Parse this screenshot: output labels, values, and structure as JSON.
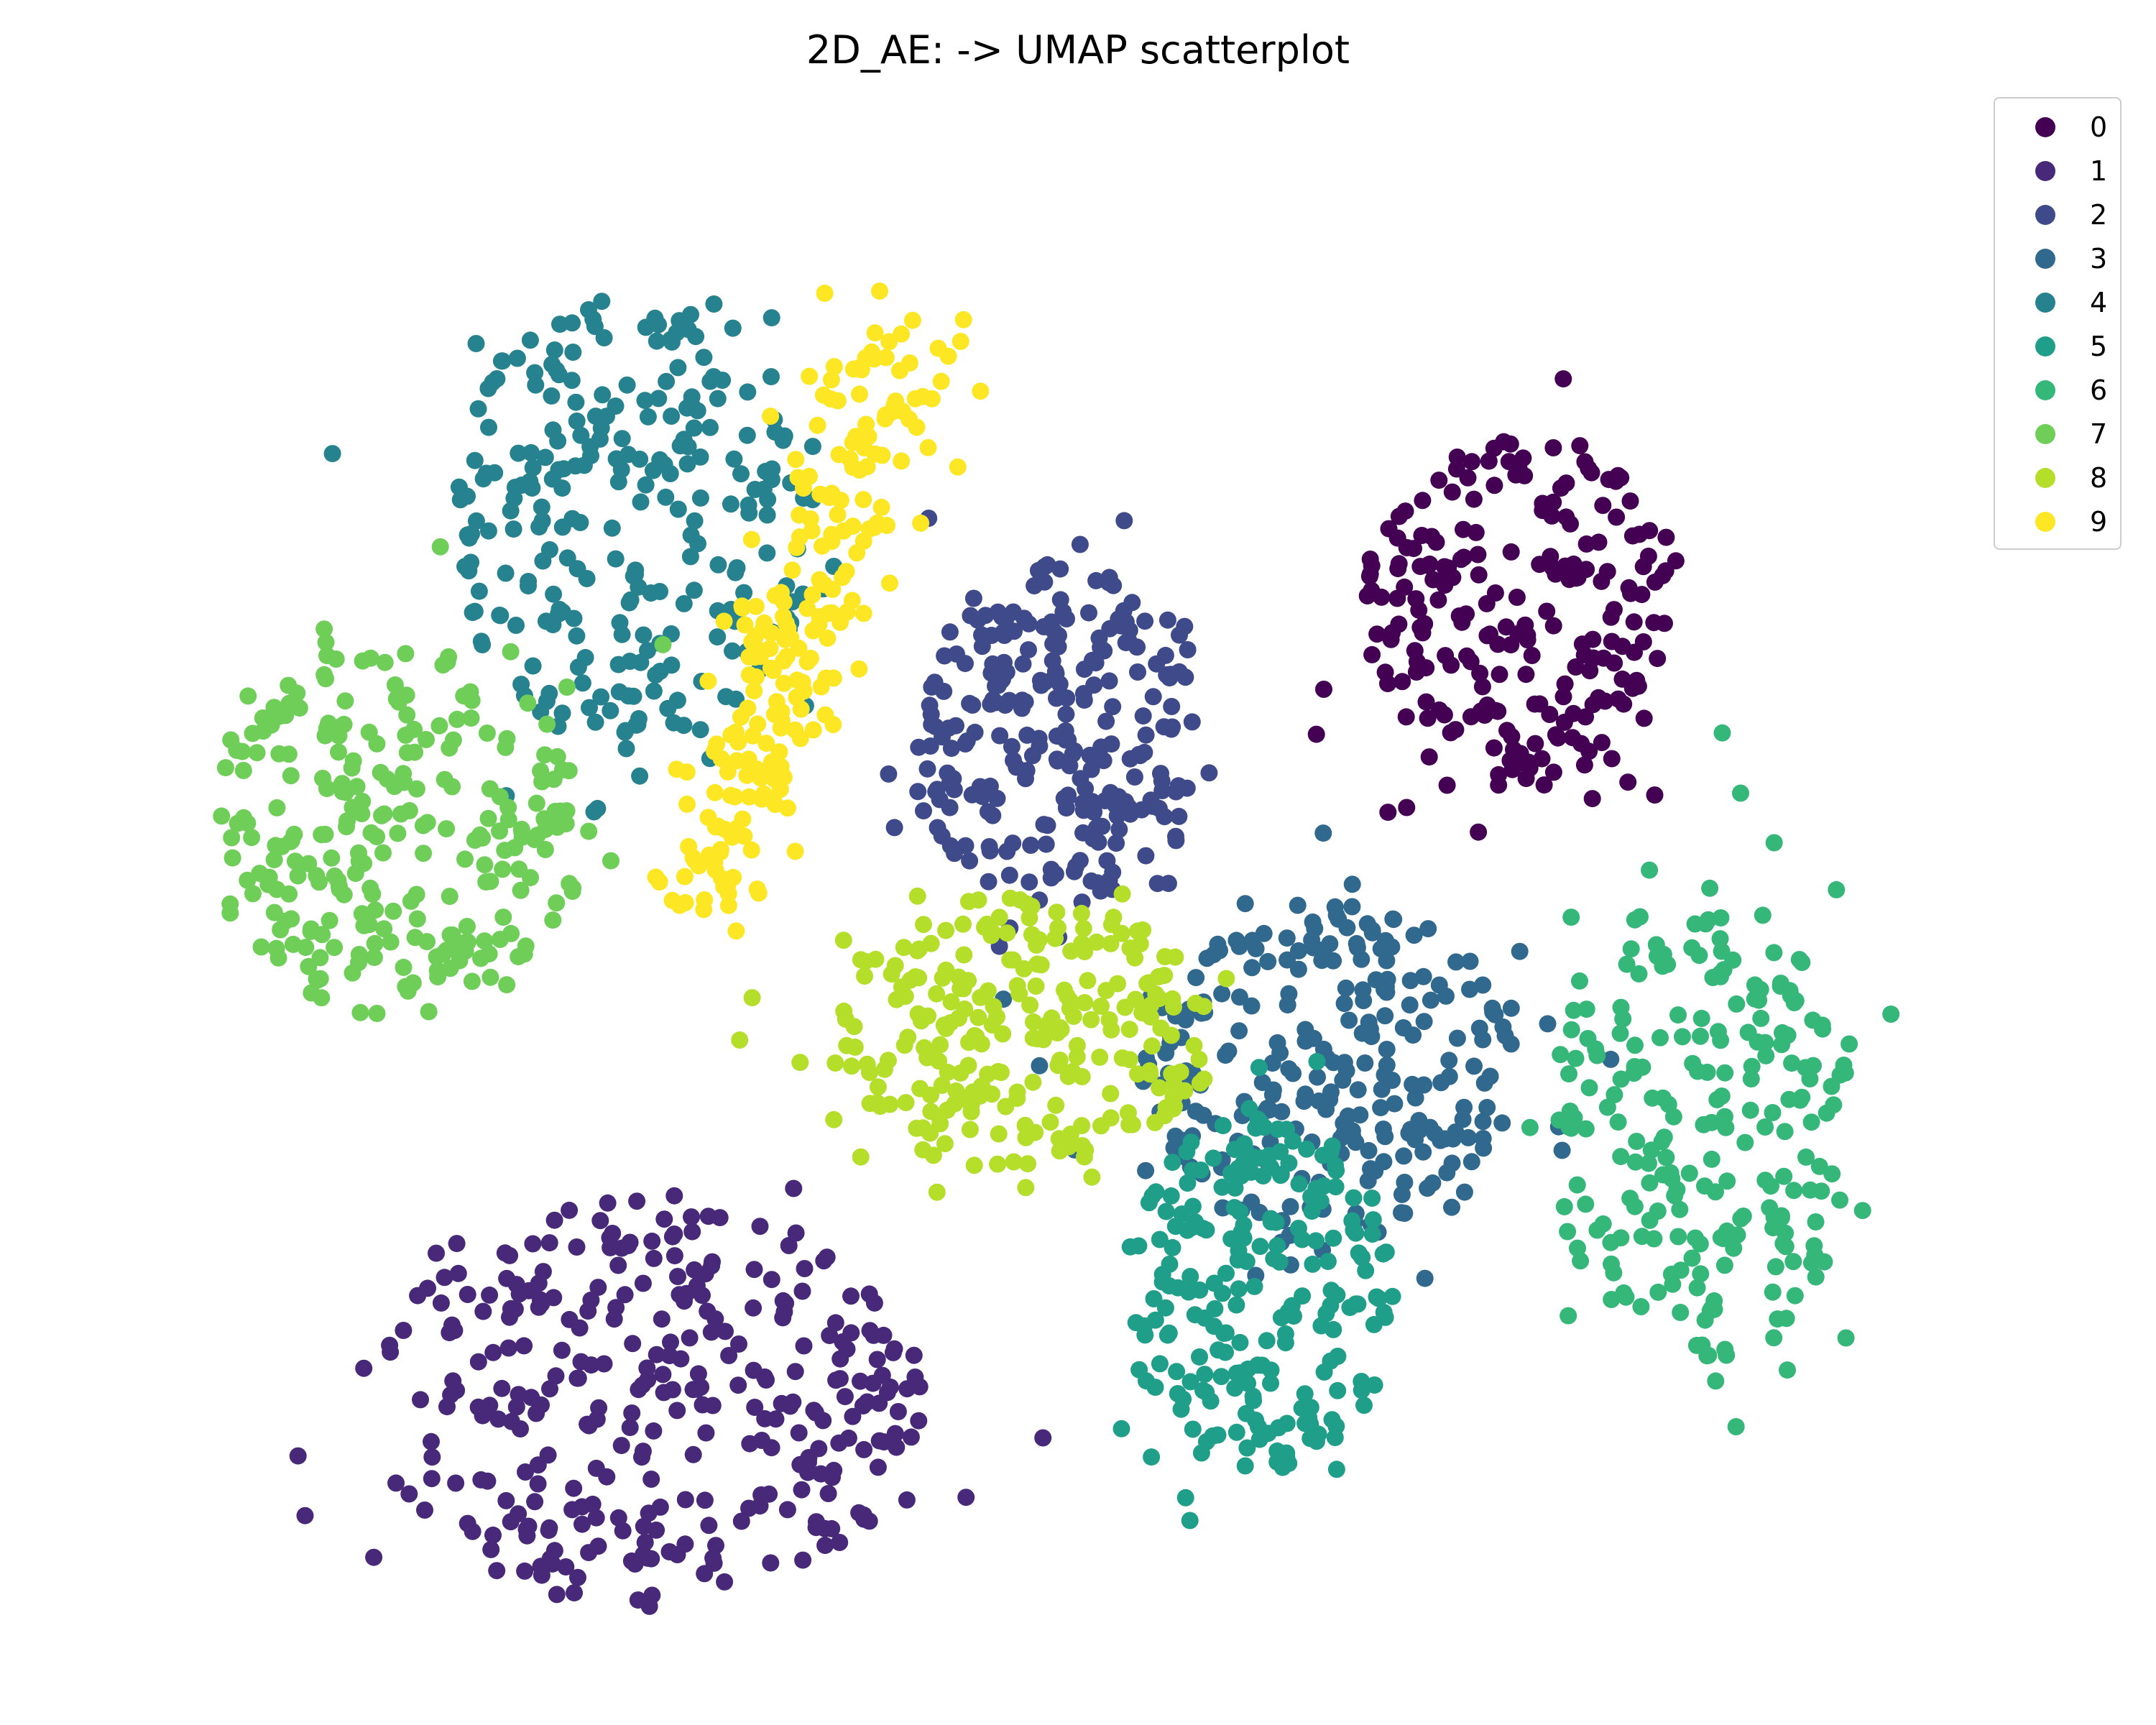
{
  "chart_data": {
    "type": "scatter",
    "title": "2D_AE: -> UMAP scatterplot",
    "xlabel": "",
    "ylabel": "",
    "axes_visible": false,
    "grid": false,
    "legend_position": "top-right",
    "xlim": [
      0,
      100
    ],
    "ylim": [
      0,
      100
    ],
    "series": [
      {
        "name": "0",
        "color": "#440154",
        "center": [
          72.6,
          68.5
        ],
        "spread": [
          5.3,
          7.2
        ],
        "count": 230
      },
      {
        "name": "1",
        "color": "#482878",
        "center": [
          27.5,
          17.2
        ],
        "spread": [
          9.0,
          8.4
        ],
        "count": 330
      },
      {
        "name": "2",
        "color": "#3e4a89",
        "center": [
          48.6,
          60.6
        ],
        "spread": [
          4.9,
          7.1
        ],
        "count": 260
      },
      {
        "name": "3",
        "color": "#31688e",
        "center": [
          62.6,
          38.7
        ],
        "spread": [
          6.2,
          7.3
        ],
        "count": 270
      },
      {
        "name": "4",
        "color": "#26828e",
        "center": [
          26.7,
          74.6
        ],
        "spread": [
          5.9,
          9.6
        ],
        "count": 270
      },
      {
        "name": "5",
        "color": "#1f9e89",
        "center": [
          59.0,
          24.3
        ],
        "spread": [
          4.4,
          7.3
        ],
        "count": 230
      },
      {
        "name": "6",
        "color": "#35b779",
        "center": [
          81.7,
          35.3
        ],
        "spread": [
          5.0,
          9.8
        ],
        "count": 240
      },
      {
        "name": "7",
        "color": "#6ece58",
        "center": [
          14.4,
          54.3
        ],
        "spread": [
          6.2,
          7.6
        ],
        "count": 270
      },
      {
        "name": "8",
        "color": "#b5de2b",
        "center": [
          46.8,
          41.2
        ],
        "spread": [
          6.3,
          5.7
        ],
        "count": 260
      },
      {
        "name": "9",
        "color": "#fde725",
        "center": [
          35.0,
          68.0
        ],
        "spread": [
          4.0,
          10.0
        ],
        "count": 240
      }
    ]
  }
}
